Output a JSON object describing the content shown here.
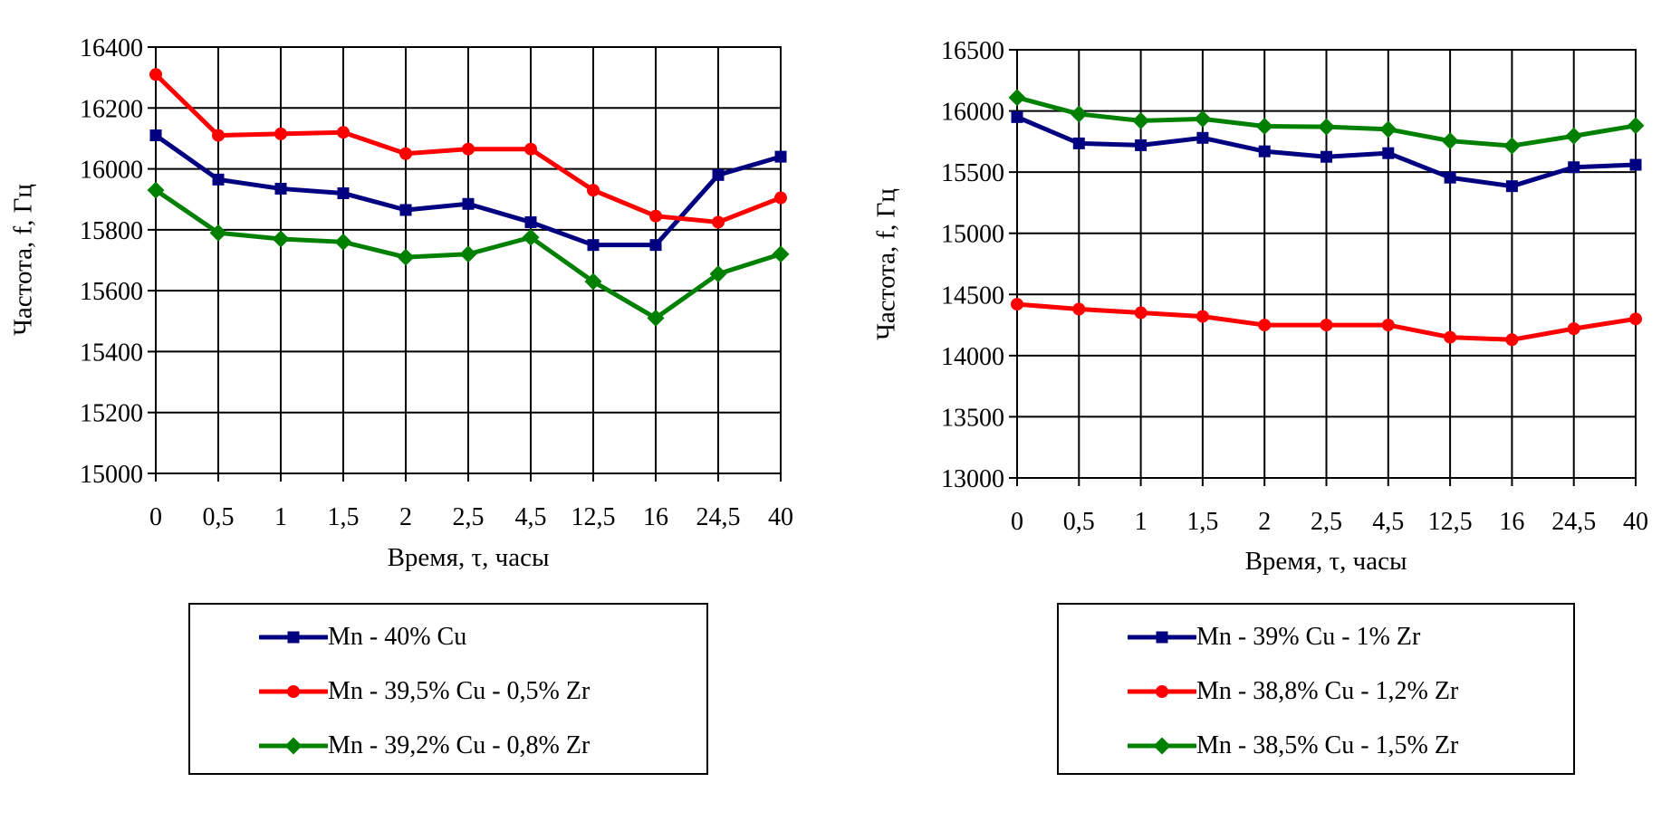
{
  "page": {
    "background": "#ffffff",
    "text_color": "#000000",
    "grid_color": "#000000"
  },
  "chart_data": [
    {
      "type": "line",
      "title": "",
      "xlabel": "Время, τ, часы",
      "ylabel": "Частота, f, Гц",
      "categories": [
        "0",
        "0,5",
        "1",
        "1,5",
        "2",
        "2,5",
        "4,5",
        "12,5",
        "16",
        "24,5",
        "40"
      ],
      "ylim": [
        15000,
        16400
      ],
      "ytick_step": 200,
      "y_tick_labels": [
        "16400",
        "16200",
        "16000",
        "15800",
        "15600",
        "15400",
        "15200",
        "15000"
      ],
      "grid": true,
      "legend_position": "below",
      "series": [
        {
          "name": "Mn - 40% Cu",
          "color": "#000080",
          "marker": "square",
          "values": [
            16110,
            15965,
            15935,
            15920,
            15865,
            15885,
            15825,
            15750,
            15750,
            15980,
            16040
          ]
        },
        {
          "name": "Mn - 39,5% Cu - 0,5% Zr",
          "color": "#ff0000",
          "marker": "circle",
          "values": [
            16310,
            16110,
            16115,
            16120,
            16050,
            16065,
            16065,
            15930,
            15845,
            15825,
            15905
          ]
        },
        {
          "name": "Mn - 39,2% Cu - 0,8% Zr",
          "color": "#008000",
          "marker": "diamond",
          "values": [
            15930,
            15790,
            15770,
            15760,
            15710,
            15720,
            15775,
            15630,
            15510,
            15655,
            15720
          ]
        }
      ]
    },
    {
      "type": "line",
      "title": "",
      "xlabel": "Время, τ, часы",
      "ylabel": "Частота, f, Гц",
      "categories": [
        "0",
        "0,5",
        "1",
        "1,5",
        "2",
        "2,5",
        "4,5",
        "12,5",
        "16",
        "24,5",
        "40"
      ],
      "ylim": [
        13000,
        16500
      ],
      "ytick_step": 500,
      "y_tick_labels": [
        "16500",
        "16000",
        "15500",
        "15000",
        "14500",
        "14000",
        "13500",
        "13000"
      ],
      "grid": true,
      "legend_position": "below",
      "series": [
        {
          "name": "Mn - 39% Cu - 1% Zr",
          "color": "#000080",
          "marker": "square",
          "values": [
            15950,
            15735,
            15720,
            15780,
            15670,
            15625,
            15655,
            15455,
            15385,
            15540,
            15560
          ]
        },
        {
          "name": "Mn - 38,8% Cu - 1,2% Zr",
          "color": "#ff0000",
          "marker": "circle",
          "values": [
            14420,
            14380,
            14350,
            14320,
            14250,
            14250,
            14250,
            14150,
            14130,
            14220,
            14300
          ]
        },
        {
          "name": "Mn - 38,5% Cu - 1,5% Zr",
          "color": "#008000",
          "marker": "diamond",
          "values": [
            16110,
            15975,
            15920,
            15935,
            15875,
            15870,
            15850,
            15755,
            15715,
            15795,
            15880
          ]
        }
      ]
    }
  ]
}
